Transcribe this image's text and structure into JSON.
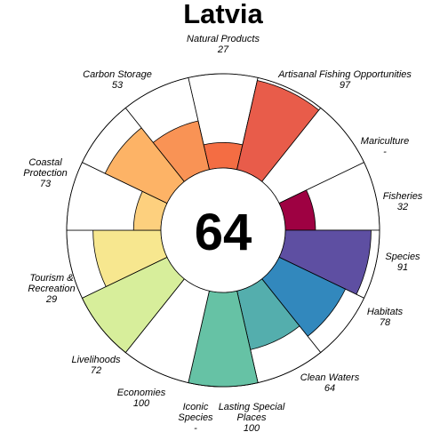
{
  "chart_data": {
    "type": "rose",
    "title": "Latvia",
    "center_score": "64",
    "max_value": 100,
    "sectors": [
      {
        "name": "Natural Products",
        "value": 27,
        "display": "27",
        "color": "#F46D43"
      },
      {
        "name": "Artisanal Fishing Opportunities",
        "value": 97,
        "display": "97",
        "color": "#E85C4A"
      },
      {
        "name": "Mariculture",
        "value": null,
        "display": "-",
        "color": "#D53E4F"
      },
      {
        "name": "Fisheries",
        "value": 32,
        "display": "32",
        "color": "#9E0142"
      },
      {
        "name": "Species",
        "value": 91,
        "display": "91",
        "color": "#5E4FA2"
      },
      {
        "name": "Habitats",
        "value": 78,
        "display": "78",
        "color": "#3288BD"
      },
      {
        "name": "Clean Waters",
        "value": 64,
        "display": "64",
        "color": "#54AEAD"
      },
      {
        "name": "Lasting Special Places",
        "value": 100,
        "display": "100",
        "color": "#66C2A5"
      },
      {
        "name": "Iconic Species",
        "value": null,
        "display": "-",
        "color": "#ABDDA4"
      },
      {
        "name": "Economies",
        "value": 100,
        "display": "100",
        "color": "#D7EE9B"
      },
      {
        "name": "Livelihoods",
        "value": 72,
        "display": "72",
        "color": "#F7E78F"
      },
      {
        "name": "Tourism & Recreation",
        "value": 29,
        "display": "29",
        "color": "#FDD07E"
      },
      {
        "name": "Coastal Protection",
        "value": 73,
        "display": "73",
        "color": "#FDB366"
      },
      {
        "name": "Carbon Storage",
        "value": 53,
        "display": "53",
        "color": "#F99355"
      }
    ]
  }
}
